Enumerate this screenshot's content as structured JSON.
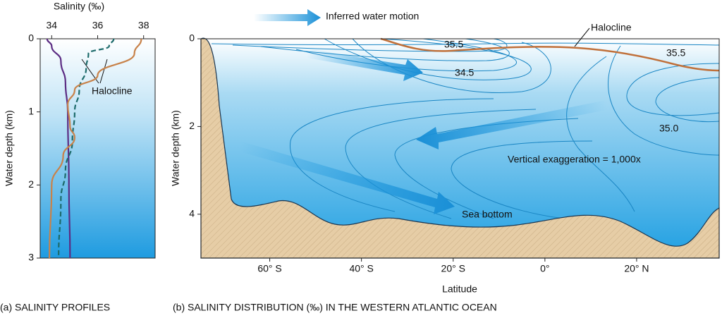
{
  "chart_data": [
    {
      "type": "line",
      "xlabel": "Salinity (‰)",
      "ylabel": "Water depth (km)",
      "caption": "(a) SALINITY PROFILES",
      "annotation": "Halocline",
      "xlim": [
        33.5,
        38.5
      ],
      "xticks": [
        34,
        36,
        38
      ],
      "ylim": [
        0,
        3
      ],
      "yticks": [
        0,
        1,
        2,
        3
      ],
      "series": [
        {
          "color": "#5b2c83",
          "dash": false,
          "x": [
            33.8,
            34.0,
            34.4,
            34.6,
            34.7,
            34.75,
            34.8
          ],
          "values": [
            0,
            0.1,
            0.3,
            0.6,
            1.0,
            2.0,
            3.0
          ]
        },
        {
          "color": "#1d6b6b",
          "dash": true,
          "x": [
            36.7,
            36.5,
            35.6,
            35.5,
            35.2,
            35.0,
            34.9,
            34.6,
            34.4,
            34.3
          ],
          "values": [
            0,
            0.1,
            0.2,
            0.4,
            0.7,
            1.0,
            1.4,
            1.8,
            2.2,
            3.0
          ]
        },
        {
          "color": "#c8824a",
          "dash": false,
          "x": [
            37.9,
            37.6,
            36.0,
            35.0,
            34.7,
            34.8,
            35.0,
            34.5,
            34.0,
            33.9
          ],
          "values": [
            0,
            0.2,
            0.5,
            0.7,
            0.9,
            1.2,
            1.35,
            1.6,
            2.0,
            3.0
          ]
        }
      ]
    },
    {
      "type": "section",
      "xlabel": "Latitude",
      "ylabel": "Water depth (km)",
      "caption": "(b) SALINITY DISTRIBUTION (‰) IN THE WESTERN ATLANTIC OCEAN",
      "xlim": [
        -75,
        38
      ],
      "xticks": [
        {
          "value": -60,
          "label": "60° S"
        },
        {
          "value": -40,
          "label": "40° S"
        },
        {
          "value": -20,
          "label": "20° S"
        },
        {
          "value": 0,
          "label": "0°"
        },
        {
          "value": 20,
          "label": "20° N"
        }
      ],
      "ylim": [
        0,
        5
      ],
      "yticks": [
        0,
        2,
        4
      ],
      "annotations": [
        "Inferred water motion",
        "Halocline",
        "Vertical exaggeration = 1,000x",
        "Sea bottom"
      ],
      "contour_labels": [
        "35.5",
        "34.5",
        "35.5",
        "35.0"
      ]
    }
  ]
}
